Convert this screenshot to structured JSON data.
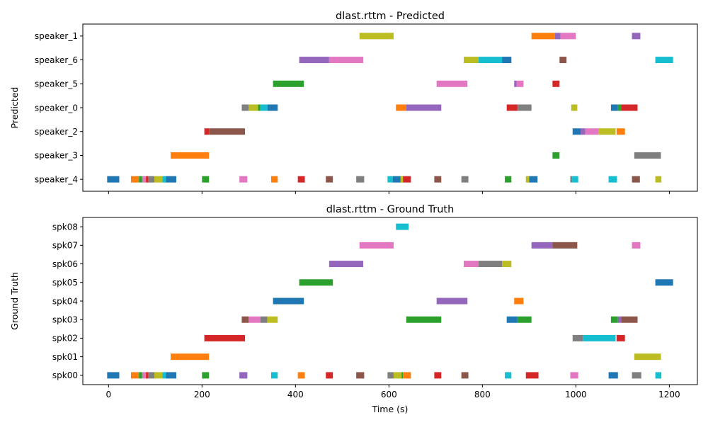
{
  "chart_data": [
    {
      "type": "gantt",
      "title": "dlast.rttm - Predicted",
      "ylabel": "Predicted",
      "xlabel": "",
      "xlim": [
        -55,
        1260
      ],
      "xticks": [
        0,
        200,
        400,
        600,
        800,
        1000,
        1200
      ],
      "show_xtick_labels": false,
      "categories": [
        "speaker_1",
        "speaker_6",
        "speaker_5",
        "speaker_0",
        "speaker_2",
        "speaker_3",
        "speaker_4"
      ],
      "segments": [
        {
          "row": "speaker_1",
          "start": 537,
          "end": 610,
          "color": "#bcbd22"
        },
        {
          "row": "speaker_1",
          "start": 905,
          "end": 955,
          "color": "#ff7f0e"
        },
        {
          "row": "speaker_1",
          "start": 955,
          "end": 967,
          "color": "#9467bd"
        },
        {
          "row": "speaker_1",
          "start": 967,
          "end": 1000,
          "color": "#e377c2"
        },
        {
          "row": "speaker_1",
          "start": 1120,
          "end": 1138,
          "color": "#9467bd"
        },
        {
          "row": "speaker_6",
          "start": 408,
          "end": 472,
          "color": "#9467bd"
        },
        {
          "row": "speaker_6",
          "start": 472,
          "end": 545,
          "color": "#e377c2"
        },
        {
          "row": "speaker_6",
          "start": 760,
          "end": 792,
          "color": "#bcbd22"
        },
        {
          "row": "speaker_6",
          "start": 792,
          "end": 842,
          "color": "#17becf"
        },
        {
          "row": "speaker_6",
          "start": 842,
          "end": 862,
          "color": "#1f77b4"
        },
        {
          "row": "speaker_6",
          "start": 965,
          "end": 980,
          "color": "#8c564b"
        },
        {
          "row": "speaker_6",
          "start": 1170,
          "end": 1208,
          "color": "#17becf"
        },
        {
          "row": "speaker_5",
          "start": 352,
          "end": 418,
          "color": "#2ca02c"
        },
        {
          "row": "speaker_5",
          "start": 702,
          "end": 768,
          "color": "#e377c2"
        },
        {
          "row": "speaker_5",
          "start": 868,
          "end": 873,
          "color": "#9467bd"
        },
        {
          "row": "speaker_5",
          "start": 873,
          "end": 888,
          "color": "#e377c2"
        },
        {
          "row": "speaker_5",
          "start": 950,
          "end": 965,
          "color": "#d62728"
        },
        {
          "row": "speaker_0",
          "start": 285,
          "end": 300,
          "color": "#7f7f7f"
        },
        {
          "row": "speaker_0",
          "start": 300,
          "end": 320,
          "color": "#bcbd22"
        },
        {
          "row": "speaker_0",
          "start": 320,
          "end": 325,
          "color": "#2ca02c"
        },
        {
          "row": "speaker_0",
          "start": 325,
          "end": 340,
          "color": "#17becf"
        },
        {
          "row": "speaker_0",
          "start": 340,
          "end": 362,
          "color": "#1f77b4"
        },
        {
          "row": "speaker_0",
          "start": 615,
          "end": 637,
          "color": "#ff7f0e"
        },
        {
          "row": "speaker_0",
          "start": 637,
          "end": 712,
          "color": "#9467bd"
        },
        {
          "row": "speaker_0",
          "start": 852,
          "end": 875,
          "color": "#d62728"
        },
        {
          "row": "speaker_0",
          "start": 875,
          "end": 905,
          "color": "#7f7f7f"
        },
        {
          "row": "speaker_0",
          "start": 990,
          "end": 1003,
          "color": "#bcbd22"
        },
        {
          "row": "speaker_0",
          "start": 1075,
          "end": 1090,
          "color": "#1f77b4"
        },
        {
          "row": "speaker_0",
          "start": 1090,
          "end": 1097,
          "color": "#2ca02c"
        },
        {
          "row": "speaker_0",
          "start": 1097,
          "end": 1132,
          "color": "#d62728"
        },
        {
          "row": "speaker_2",
          "start": 205,
          "end": 215,
          "color": "#d62728"
        },
        {
          "row": "speaker_2",
          "start": 215,
          "end": 292,
          "color": "#8c564b"
        },
        {
          "row": "speaker_2",
          "start": 993,
          "end": 1010,
          "color": "#1f77b4"
        },
        {
          "row": "speaker_2",
          "start": 1010,
          "end": 1020,
          "color": "#9467bd"
        },
        {
          "row": "speaker_2",
          "start": 1020,
          "end": 1048,
          "color": "#e377c2"
        },
        {
          "row": "speaker_2",
          "start": 1048,
          "end": 1085,
          "color": "#bcbd22"
        },
        {
          "row": "speaker_2",
          "start": 1087,
          "end": 1105,
          "color": "#ff7f0e"
        },
        {
          "row": "speaker_3",
          "start": 133,
          "end": 215,
          "color": "#ff7f0e"
        },
        {
          "row": "speaker_3",
          "start": 950,
          "end": 965,
          "color": "#2ca02c"
        },
        {
          "row": "speaker_3",
          "start": 1125,
          "end": 1182,
          "color": "#7f7f7f"
        },
        {
          "row": "speaker_4",
          "start": -3,
          "end": 23,
          "color": "#1f77b4"
        },
        {
          "row": "speaker_4",
          "start": 48,
          "end": 65,
          "color": "#ff7f0e"
        },
        {
          "row": "speaker_4",
          "start": 65,
          "end": 72,
          "color": "#2ca02c"
        },
        {
          "row": "speaker_4",
          "start": 72,
          "end": 80,
          "color": "#e377c2"
        },
        {
          "row": "speaker_4",
          "start": 80,
          "end": 85,
          "color": "#d62728"
        },
        {
          "row": "speaker_4",
          "start": 85,
          "end": 98,
          "color": "#7f7f7f"
        },
        {
          "row": "speaker_4",
          "start": 98,
          "end": 115,
          "color": "#bcbd22"
        },
        {
          "row": "speaker_4",
          "start": 115,
          "end": 123,
          "color": "#17becf"
        },
        {
          "row": "speaker_4",
          "start": 123,
          "end": 145,
          "color": "#1f77b4"
        },
        {
          "row": "speaker_4",
          "start": 200,
          "end": 215,
          "color": "#2ca02c"
        },
        {
          "row": "speaker_4",
          "start": 280,
          "end": 297,
          "color": "#e377c2"
        },
        {
          "row": "speaker_4",
          "start": 348,
          "end": 362,
          "color": "#ff7f0e"
        },
        {
          "row": "speaker_4",
          "start": 405,
          "end": 420,
          "color": "#d62728"
        },
        {
          "row": "speaker_4",
          "start": 465,
          "end": 480,
          "color": "#8c564b"
        },
        {
          "row": "speaker_4",
          "start": 530,
          "end": 547,
          "color": "#7f7f7f"
        },
        {
          "row": "speaker_4",
          "start": 597,
          "end": 608,
          "color": "#17becf"
        },
        {
          "row": "speaker_4",
          "start": 608,
          "end": 625,
          "color": "#1f77b4"
        },
        {
          "row": "speaker_4",
          "start": 625,
          "end": 630,
          "color": "#bcbd22"
        },
        {
          "row": "speaker_4",
          "start": 630,
          "end": 647,
          "color": "#d62728"
        },
        {
          "row": "speaker_4",
          "start": 697,
          "end": 712,
          "color": "#8c564b"
        },
        {
          "row": "speaker_4",
          "start": 755,
          "end": 770,
          "color": "#7f7f7f"
        },
        {
          "row": "speaker_4",
          "start": 848,
          "end": 862,
          "color": "#2ca02c"
        },
        {
          "row": "speaker_4",
          "start": 893,
          "end": 900,
          "color": "#bcbd22"
        },
        {
          "row": "speaker_4",
          "start": 900,
          "end": 918,
          "color": "#1f77b4"
        },
        {
          "row": "speaker_4",
          "start": 988,
          "end": 992,
          "color": "#7f7f7f"
        },
        {
          "row": "speaker_4",
          "start": 992,
          "end": 1005,
          "color": "#17becf"
        },
        {
          "row": "speaker_4",
          "start": 1070,
          "end": 1088,
          "color": "#17becf"
        },
        {
          "row": "speaker_4",
          "start": 1120,
          "end": 1137,
          "color": "#8c564b"
        },
        {
          "row": "speaker_4",
          "start": 1170,
          "end": 1183,
          "color": "#bcbd22"
        }
      ]
    },
    {
      "type": "gantt",
      "title": "dlast.rttm - Ground Truth",
      "ylabel": "Ground Truth",
      "xlabel": "Time (s)",
      "xlim": [
        -55,
        1260
      ],
      "xticks": [
        0,
        200,
        400,
        600,
        800,
        1000,
        1200
      ],
      "show_xtick_labels": true,
      "categories": [
        "spk08",
        "spk07",
        "spk06",
        "spk05",
        "spk04",
        "spk03",
        "spk02",
        "spk01",
        "spk00"
      ],
      "segments": [
        {
          "row": "spk08",
          "start": 615,
          "end": 642,
          "color": "#17becf"
        },
        {
          "row": "spk07",
          "start": 537,
          "end": 610,
          "color": "#e377c2"
        },
        {
          "row": "spk07",
          "start": 905,
          "end": 950,
          "color": "#9467bd"
        },
        {
          "row": "spk07",
          "start": 950,
          "end": 1003,
          "color": "#8c564b"
        },
        {
          "row": "spk07",
          "start": 1120,
          "end": 1138,
          "color": "#e377c2"
        },
        {
          "row": "spk06",
          "start": 472,
          "end": 545,
          "color": "#9467bd"
        },
        {
          "row": "spk06",
          "start": 760,
          "end": 792,
          "color": "#e377c2"
        },
        {
          "row": "spk06",
          "start": 792,
          "end": 842,
          "color": "#7f7f7f"
        },
        {
          "row": "spk06",
          "start": 842,
          "end": 862,
          "color": "#bcbd22"
        },
        {
          "row": "spk05",
          "start": 408,
          "end": 480,
          "color": "#2ca02c"
        },
        {
          "row": "spk05",
          "start": 1170,
          "end": 1208,
          "color": "#1f77b4"
        },
        {
          "row": "spk04",
          "start": 352,
          "end": 418,
          "color": "#1f77b4"
        },
        {
          "row": "spk04",
          "start": 702,
          "end": 768,
          "color": "#9467bd"
        },
        {
          "row": "spk04",
          "start": 868,
          "end": 888,
          "color": "#ff7f0e"
        },
        {
          "row": "spk03",
          "start": 285,
          "end": 300,
          "color": "#8c564b"
        },
        {
          "row": "spk03",
          "start": 300,
          "end": 325,
          "color": "#e377c2"
        },
        {
          "row": "spk03",
          "start": 325,
          "end": 340,
          "color": "#7f7f7f"
        },
        {
          "row": "spk03",
          "start": 340,
          "end": 362,
          "color": "#bcbd22"
        },
        {
          "row": "spk03",
          "start": 637,
          "end": 712,
          "color": "#2ca02c"
        },
        {
          "row": "spk03",
          "start": 852,
          "end": 875,
          "color": "#1f77b4"
        },
        {
          "row": "spk03",
          "start": 875,
          "end": 905,
          "color": "#2ca02c"
        },
        {
          "row": "spk03",
          "start": 1075,
          "end": 1090,
          "color": "#2ca02c"
        },
        {
          "row": "spk03",
          "start": 1090,
          "end": 1097,
          "color": "#9467bd"
        },
        {
          "row": "spk03",
          "start": 1097,
          "end": 1132,
          "color": "#8c564b"
        },
        {
          "row": "spk02",
          "start": 205,
          "end": 292,
          "color": "#d62728"
        },
        {
          "row": "spk02",
          "start": 993,
          "end": 1015,
          "color": "#7f7f7f"
        },
        {
          "row": "spk02",
          "start": 1015,
          "end": 1085,
          "color": "#17becf"
        },
        {
          "row": "spk02",
          "start": 1087,
          "end": 1105,
          "color": "#d62728"
        },
        {
          "row": "spk01",
          "start": 133,
          "end": 215,
          "color": "#ff7f0e"
        },
        {
          "row": "spk01",
          "start": 1125,
          "end": 1182,
          "color": "#bcbd22"
        },
        {
          "row": "spk00",
          "start": -3,
          "end": 23,
          "color": "#1f77b4"
        },
        {
          "row": "spk00",
          "start": 48,
          "end": 65,
          "color": "#ff7f0e"
        },
        {
          "row": "spk00",
          "start": 65,
          "end": 72,
          "color": "#2ca02c"
        },
        {
          "row": "spk00",
          "start": 72,
          "end": 80,
          "color": "#e377c2"
        },
        {
          "row": "spk00",
          "start": 80,
          "end": 85,
          "color": "#d62728"
        },
        {
          "row": "spk00",
          "start": 85,
          "end": 98,
          "color": "#7f7f7f"
        },
        {
          "row": "spk00",
          "start": 98,
          "end": 115,
          "color": "#bcbd22"
        },
        {
          "row": "spk00",
          "start": 115,
          "end": 123,
          "color": "#17becf"
        },
        {
          "row": "spk00",
          "start": 123,
          "end": 145,
          "color": "#1f77b4"
        },
        {
          "row": "spk00",
          "start": 200,
          "end": 215,
          "color": "#2ca02c"
        },
        {
          "row": "spk00",
          "start": 280,
          "end": 297,
          "color": "#9467bd"
        },
        {
          "row": "spk00",
          "start": 348,
          "end": 362,
          "color": "#17becf"
        },
        {
          "row": "spk00",
          "start": 405,
          "end": 420,
          "color": "#ff7f0e"
        },
        {
          "row": "spk00",
          "start": 465,
          "end": 480,
          "color": "#d62728"
        },
        {
          "row": "spk00",
          "start": 530,
          "end": 547,
          "color": "#8c564b"
        },
        {
          "row": "spk00",
          "start": 597,
          "end": 610,
          "color": "#7f7f7f"
        },
        {
          "row": "spk00",
          "start": 610,
          "end": 627,
          "color": "#bcbd22"
        },
        {
          "row": "spk00",
          "start": 627,
          "end": 630,
          "color": "#2ca02c"
        },
        {
          "row": "spk00",
          "start": 630,
          "end": 647,
          "color": "#ff7f0e"
        },
        {
          "row": "spk00",
          "start": 697,
          "end": 712,
          "color": "#d62728"
        },
        {
          "row": "spk00",
          "start": 755,
          "end": 770,
          "color": "#8c564b"
        },
        {
          "row": "spk00",
          "start": 848,
          "end": 862,
          "color": "#17becf"
        },
        {
          "row": "spk00",
          "start": 893,
          "end": 920,
          "color": "#d62728"
        },
        {
          "row": "spk00",
          "start": 988,
          "end": 1005,
          "color": "#e377c2"
        },
        {
          "row": "spk00",
          "start": 1070,
          "end": 1090,
          "color": "#1f77b4"
        },
        {
          "row": "spk00",
          "start": 1120,
          "end": 1140,
          "color": "#7f7f7f"
        },
        {
          "row": "spk00",
          "start": 1170,
          "end": 1183,
          "color": "#17becf"
        }
      ]
    }
  ]
}
